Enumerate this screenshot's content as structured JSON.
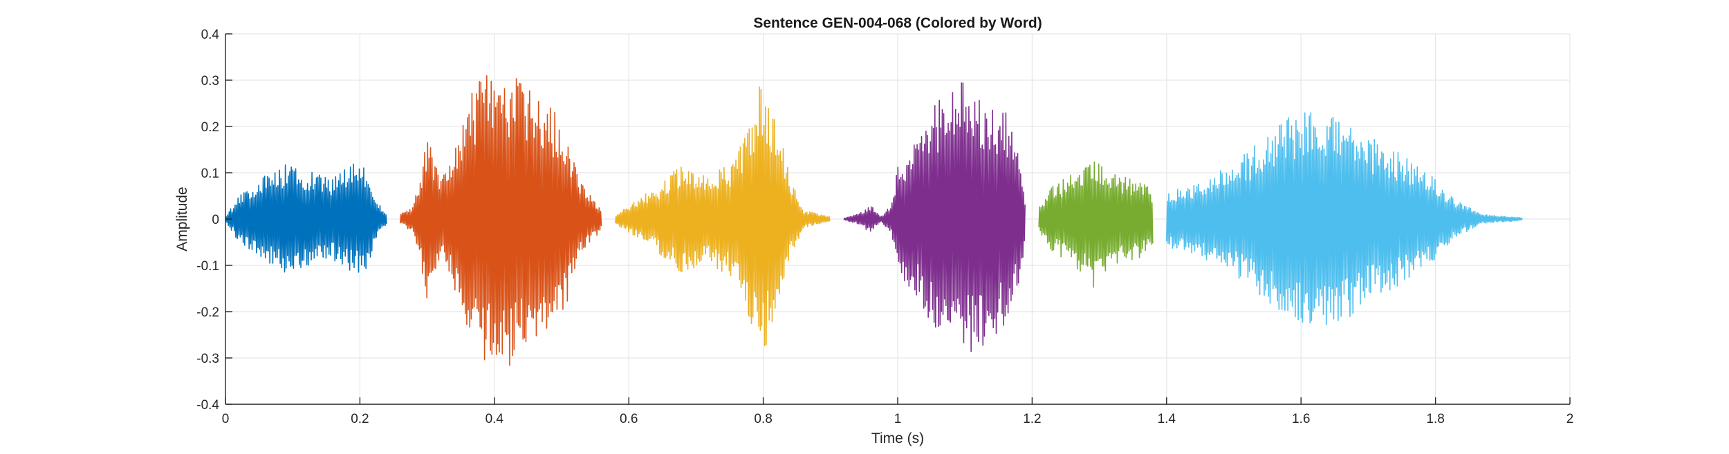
{
  "chart_data": {
    "type": "line",
    "title": "Sentence GEN-004-068 (Colored by Word)",
    "xlabel": "Time (s)",
    "ylabel": "Amplitude",
    "xlim": [
      0,
      2
    ],
    "ylim": [
      -0.4,
      0.4
    ],
    "x_ticks": [
      0,
      0.2,
      0.4,
      0.6,
      0.8,
      1,
      1.2,
      1.4,
      1.6,
      1.8,
      2
    ],
    "x_tick_labels": [
      "0",
      "0.2",
      "0.4",
      "0.6",
      "0.8",
      "1",
      "1.2",
      "1.4",
      "1.6",
      "1.8",
      "2"
    ],
    "y_ticks": [
      -0.4,
      -0.3,
      -0.2,
      -0.1,
      0,
      0.1,
      0.2,
      0.3,
      0.4
    ],
    "y_tick_labels": [
      "-0.4",
      "-0.3",
      "-0.2",
      "-0.1",
      "0",
      "0.1",
      "0.2",
      "0.3",
      "0.4"
    ],
    "grid": true,
    "series": [
      {
        "start": 0.0,
        "end": 0.24,
        "color": "#0072BD",
        "envelope": [
          [
            0.0,
            0.005
          ],
          [
            0.02,
            0.05
          ],
          [
            0.05,
            0.09
          ],
          [
            0.09,
            0.12
          ],
          [
            0.13,
            0.1
          ],
          [
            0.16,
            0.09
          ],
          [
            0.19,
            0.12
          ],
          [
            0.21,
            0.11
          ],
          [
            0.23,
            0.03
          ],
          [
            0.24,
            0.01
          ]
        ]
      },
      {
        "start": 0.26,
        "end": 0.56,
        "color": "#D95319",
        "envelope": [
          [
            0.26,
            0.01
          ],
          [
            0.28,
            0.03
          ],
          [
            0.3,
            0.18
          ],
          [
            0.32,
            0.08
          ],
          [
            0.34,
            0.15
          ],
          [
            0.36,
            0.26
          ],
          [
            0.38,
            0.31
          ],
          [
            0.42,
            0.32
          ],
          [
            0.46,
            0.27
          ],
          [
            0.5,
            0.22
          ],
          [
            0.53,
            0.08
          ],
          [
            0.56,
            0.02
          ]
        ]
      },
      {
        "start": 0.58,
        "end": 0.9,
        "color": "#EDB120",
        "envelope": [
          [
            0.58,
            0.01
          ],
          [
            0.6,
            0.03
          ],
          [
            0.64,
            0.07
          ],
          [
            0.68,
            0.12
          ],
          [
            0.72,
            0.1
          ],
          [
            0.76,
            0.13
          ],
          [
            0.79,
            0.27
          ],
          [
            0.8,
            0.31
          ],
          [
            0.82,
            0.22
          ],
          [
            0.84,
            0.09
          ],
          [
            0.86,
            0.02
          ],
          [
            0.9,
            0.005
          ]
        ]
      },
      {
        "start": 0.92,
        "end": 1.19,
        "color": "#7E2F8E",
        "envelope": [
          [
            0.92,
            0.002
          ],
          [
            0.94,
            0.01
          ],
          [
            0.96,
            0.03
          ],
          [
            0.975,
            0.005
          ],
          [
            0.99,
            0.03
          ],
          [
            1.0,
            0.12
          ],
          [
            1.03,
            0.17
          ],
          [
            1.06,
            0.26
          ],
          [
            1.1,
            0.3
          ],
          [
            1.13,
            0.27
          ],
          [
            1.16,
            0.24
          ],
          [
            1.18,
            0.14
          ],
          [
            1.19,
            0.05
          ]
        ]
      },
      {
        "start": 1.21,
        "end": 1.38,
        "color": "#77AC30",
        "envelope": [
          [
            1.21,
            0.03
          ],
          [
            1.23,
            0.07
          ],
          [
            1.26,
            0.1
          ],
          [
            1.29,
            0.15
          ],
          [
            1.32,
            0.1
          ],
          [
            1.35,
            0.09
          ],
          [
            1.37,
            0.08
          ],
          [
            1.38,
            0.06
          ]
        ]
      },
      {
        "start": 1.4,
        "end": 1.93,
        "color": "#4DBEEE",
        "envelope": [
          [
            1.4,
            0.06
          ],
          [
            1.43,
            0.07
          ],
          [
            1.46,
            0.09
          ],
          [
            1.5,
            0.12
          ],
          [
            1.54,
            0.17
          ],
          [
            1.58,
            0.22
          ],
          [
            1.62,
            0.25
          ],
          [
            1.66,
            0.23
          ],
          [
            1.7,
            0.18
          ],
          [
            1.75,
            0.14
          ],
          [
            1.79,
            0.1
          ],
          [
            1.83,
            0.04
          ],
          [
            1.87,
            0.01
          ],
          [
            1.93,
            0.003
          ]
        ]
      }
    ]
  }
}
